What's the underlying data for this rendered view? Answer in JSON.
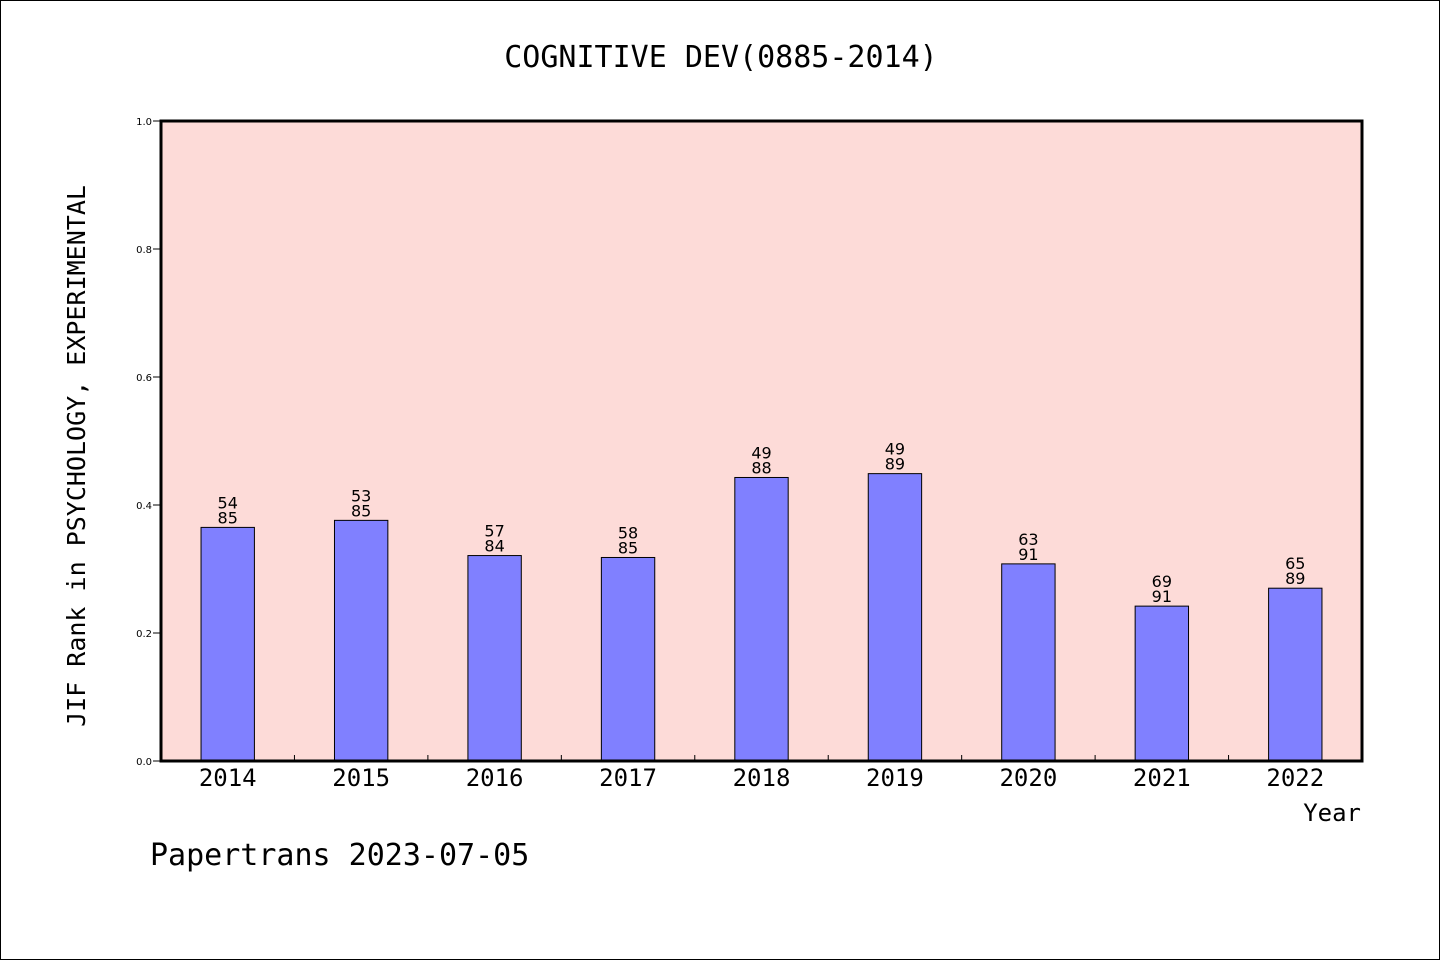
{
  "chart_data": {
    "type": "bar",
    "title": "COGNITIVE DEV(0885-2014)",
    "xlabel": "Year",
    "ylabel": "JIF Rank in PSYCHOLOGY, EXPERIMENTAL",
    "ylim": [
      0,
      1.0
    ],
    "yticks": [
      "0.0",
      "0.2",
      "0.4",
      "0.6",
      "0.8",
      "1.0"
    ],
    "categories": [
      "2014",
      "2015",
      "2016",
      "2017",
      "2018",
      "2019",
      "2020",
      "2021",
      "2022"
    ],
    "values": [
      0.365,
      0.376,
      0.321,
      0.318,
      0.443,
      0.449,
      0.308,
      0.242,
      0.27
    ],
    "labels": [
      {
        "rank": "54",
        "total": "85"
      },
      {
        "rank": "53",
        "total": "85"
      },
      {
        "rank": "57",
        "total": "84"
      },
      {
        "rank": "58",
        "total": "85"
      },
      {
        "rank": "49",
        "total": "88"
      },
      {
        "rank": "49",
        "total": "89"
      },
      {
        "rank": "63",
        "total": "91"
      },
      {
        "rank": "69",
        "total": "91"
      },
      {
        "rank": "65",
        "total": "89"
      }
    ],
    "grid": false,
    "colors": {
      "plot_bg": "#fddbd8",
      "bar_fill": "#8080ff",
      "bar_edge": "#000000"
    }
  },
  "footer": "Papertrans 2023-07-05"
}
